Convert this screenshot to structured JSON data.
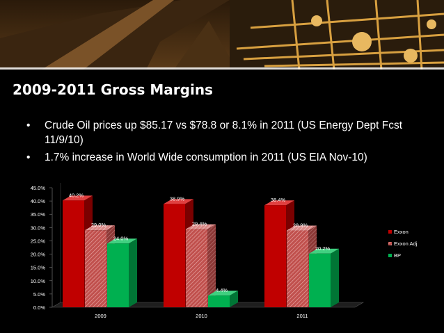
{
  "slide": {
    "title": "2009-2011 Gross Margins",
    "bullets": [
      "Crude Oil prices up $85.17 vs $78.8 or 8.1% in 2011 (US Energy Dept Fcst 11/9/10)",
      "1.7% increase in World Wide consumption in 2011 (US EIA Nov-10)"
    ]
  },
  "colors": {
    "exxon": "#c00000",
    "exxon_adj": "#c0504d",
    "bp": "#00b050",
    "background": "#000000"
  },
  "chart_data": {
    "type": "bar",
    "categories": [
      "2009",
      "2010",
      "2011"
    ],
    "series": [
      {
        "name": "Exxon",
        "values": [
          40.2,
          38.9,
          38.4
        ],
        "labels": [
          "40.2%",
          "38.9%",
          "38.4%"
        ]
      },
      {
        "name": "Exxon Adj",
        "values": [
          29.0,
          29.4,
          28.9
        ],
        "labels": [
          "29.0%",
          "29.4%",
          "28.9%"
        ]
      },
      {
        "name": "BP",
        "values": [
          24.0,
          4.4,
          20.2
        ],
        "labels": [
          "24.0%",
          "4.4%",
          "20.2%"
        ]
      }
    ],
    "ylim": [
      0,
      45
    ],
    "yticks": [
      "0.0%",
      "5.0%",
      "10.0%",
      "15.0%",
      "20.0%",
      "25.0%",
      "30.0%",
      "35.0%",
      "40.0%",
      "45.0%"
    ],
    "legend_position": "right",
    "grid": false,
    "style": "3d"
  }
}
